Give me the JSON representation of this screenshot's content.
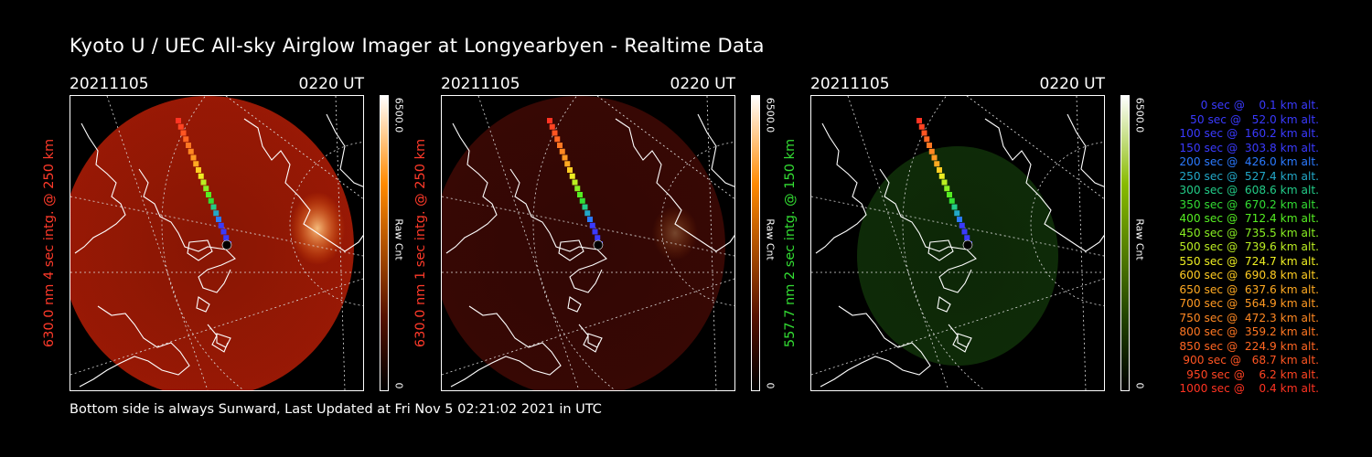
{
  "title": "Kyoto U / UEC All-sky Airglow Imager at Longyearbyen - Realtime Data",
  "footer": "Bottom side is always Sunward, Last Updated at Fri Nov  5 02:21:02 2021 in UTC",
  "panels": [
    {
      "date": "20211105",
      "time": "0220 UT",
      "ylabel": "630.0 nm 4 sec intg. @ 250 km",
      "label_color": "#ff3a2a",
      "cb_max": "6500.0",
      "cb_unit": "Raw Cnt",
      "cb_min": "0",
      "tint": "#a01a05",
      "bar_top": "#ff8a00"
    },
    {
      "date": "20211105",
      "time": "0220 UT",
      "ylabel": "630.0 nm 1 sec intg. @ 250 km",
      "label_color": "#ff3a2a",
      "cb_max": "6500.0",
      "cb_unit": "Raw Cnt",
      "cb_min": "0",
      "tint": "#3a0804",
      "bar_top": "#ff8a00"
    },
    {
      "date": "20211105",
      "time": "0220 UT",
      "ylabel": "557.7 nm 2 sec intg. @ 150 km",
      "label_color": "#33dd33",
      "cb_max": "6500.0",
      "cb_unit": "Raw Cnt",
      "cb_min": "0",
      "tint": "#0f2d08",
      "bar_top": "#88bb00"
    }
  ],
  "legend": [
    {
      "text": "   0 sec @    0.1 km alt.",
      "color": "#3a3aff"
    },
    {
      "text": "  50 sec @   52.0 km alt.",
      "color": "#3a3aff"
    },
    {
      "text": " 100 sec @  160.2 km alt.",
      "color": "#3a3aff"
    },
    {
      "text": " 150 sec @  303.8 km alt.",
      "color": "#3a3aff"
    },
    {
      "text": " 200 sec @  426.0 km alt.",
      "color": "#2a7aff"
    },
    {
      "text": " 250 sec @  527.4 km alt.",
      "color": "#22a8c8"
    },
    {
      "text": " 300 sec @  608.6 km alt.",
      "color": "#22cc88"
    },
    {
      "text": " 350 sec @  670.2 km alt.",
      "color": "#33dd33"
    },
    {
      "text": " 400 sec @  712.4 km alt.",
      "color": "#55ee22"
    },
    {
      "text": " 450 sec @  735.5 km alt.",
      "color": "#88ee22"
    },
    {
      "text": " 500 sec @  739.6 km alt.",
      "color": "#bbee22"
    },
    {
      "text": " 550 sec @  724.7 km alt.",
      "color": "#eeee22"
    },
    {
      "text": " 600 sec @  690.8 km alt.",
      "color": "#ffcc22"
    },
    {
      "text": " 650 sec @  637.6 km alt.",
      "color": "#ffaa22"
    },
    {
      "text": " 700 sec @  564.9 km alt.",
      "color": "#ff9922"
    },
    {
      "text": " 750 sec @  472.3 km alt.",
      "color": "#ff8822"
    },
    {
      "text": " 800 sec @  359.2 km alt.",
      "color": "#ff7722"
    },
    {
      "text": " 850 sec @  224.9 km alt.",
      "color": "#ff6622"
    },
    {
      "text": " 900 sec @   68.7 km alt.",
      "color": "#ff5522"
    },
    {
      "text": " 950 sec @    6.2 km alt.",
      "color": "#ff4422"
    },
    {
      "text": "1000 sec @    0.4 km alt.",
      "color": "#ff3322"
    }
  ]
}
